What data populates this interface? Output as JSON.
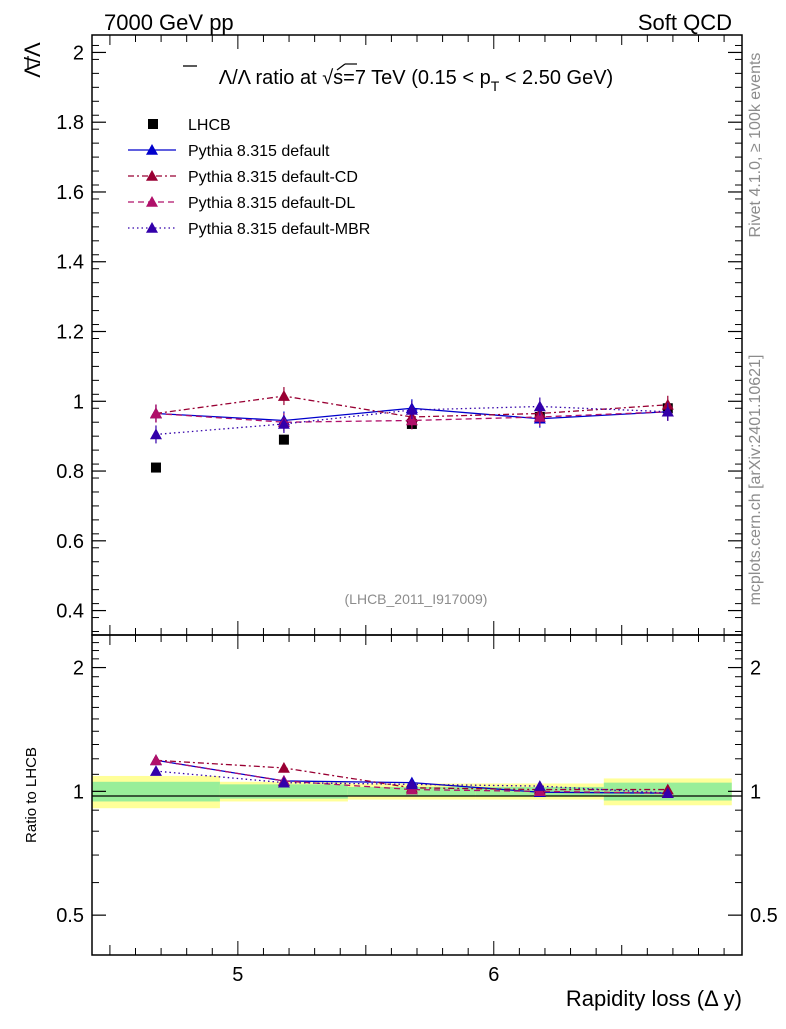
{
  "header": {
    "left": "7000 GeV pp",
    "right": "Soft QCD"
  },
  "side_labels": {
    "rivet": "Rivet 4.1.0, ≥ 100k events",
    "mcplots": "mcplots.cern.ch [arXiv:2401.10621]"
  },
  "colors": {
    "data": "#000000",
    "default": "#0000cc",
    "cd": "#990033",
    "dl": "#b0106a",
    "mbr": "#3300aa",
    "band_inner": "#99ee99",
    "band_outer": "#ffff99",
    "watermark": "#8c8c8c"
  },
  "chart_data": [
    {
      "type": "scatter",
      "title_main": "Λ/Λ ratio at √s=7 TeV (0.15 < p",
      "title_sub": "T",
      "title_tail": " < 2.50 GeV)",
      "ylabel": "Λ/Λ",
      "watermark": "(LHCB_2011_I917009)",
      "xlim": [
        4.43,
        6.97
      ],
      "ylim": [
        0.33,
        2.05
      ],
      "yticks": [
        0.4,
        0.6,
        0.8,
        1.0,
        1.2,
        1.4,
        1.6,
        1.8,
        2.0
      ],
      "ytick_labels": [
        "0.4",
        "0.6",
        "0.8",
        "1",
        "1.2",
        "1.4",
        "1.6",
        "1.8",
        "2"
      ],
      "x": [
        4.68,
        5.18,
        5.68,
        6.18,
        6.68
      ],
      "series": [
        {
          "name": "LHCB",
          "key": "data",
          "values": [
            0.81,
            0.89,
            0.935,
            0.955,
            0.98
          ],
          "style": "square"
        },
        {
          "name": "Pythia 8.315 default",
          "key": "default",
          "values": [
            0.965,
            0.945,
            0.98,
            0.95,
            0.97
          ],
          "style": "solid"
        },
        {
          "name": "Pythia 8.315 default-CD",
          "key": "cd",
          "values": [
            0.965,
            1.015,
            0.955,
            0.965,
            0.99
          ],
          "style": "dashdot"
        },
        {
          "name": "Pythia 8.315 default-DL",
          "key": "dl",
          "values": [
            0.965,
            0.94,
            0.945,
            0.955,
            0.97
          ],
          "style": "dashed"
        },
        {
          "name": "Pythia 8.315 default-MBR",
          "key": "mbr",
          "values": [
            0.905,
            0.935,
            0.975,
            0.985,
            0.97
          ],
          "style": "dotted"
        }
      ]
    },
    {
      "type": "line",
      "ylabel": "Ratio to LHCB",
      "xlabel": "Rapidity loss (Δ y)",
      "yscale": "log",
      "ylim": [
        0.4,
        2.4
      ],
      "yticks": [
        0.5,
        1,
        2
      ],
      "ytick_labels": [
        "0.5",
        "1",
        "2"
      ],
      "xticks": [
        5,
        6
      ],
      "xtick_labels": [
        "5",
        "6"
      ],
      "x": [
        4.68,
        5.18,
        5.68,
        6.18,
        6.68
      ],
      "bins": [
        [
          4.43,
          4.93
        ],
        [
          4.93,
          5.43
        ],
        [
          5.43,
          5.93
        ],
        [
          5.93,
          6.43
        ],
        [
          6.43,
          6.93
        ]
      ],
      "band_inner": [
        0.055,
        0.04,
        0.025,
        0.025,
        0.05
      ],
      "band_outer": [
        0.09,
        0.055,
        0.045,
        0.045,
        0.075
      ],
      "series": [
        {
          "name": "Pythia 8.315 default",
          "key": "default",
          "values": [
            1.19,
            1.06,
            1.05,
            0.995,
            0.99
          ],
          "style": "solid"
        },
        {
          "name": "Pythia 8.315 default-CD",
          "key": "cd",
          "values": [
            1.19,
            1.14,
            1.02,
            1.01,
            1.01
          ],
          "style": "dashdot"
        },
        {
          "name": "Pythia 8.315 default-DL",
          "key": "dl",
          "values": [
            1.19,
            1.06,
            1.01,
            1.0,
            0.99
          ],
          "style": "dashed"
        },
        {
          "name": "Pythia 8.315 default-MBR",
          "key": "mbr",
          "values": [
            1.12,
            1.05,
            1.04,
            1.03,
            0.99
          ],
          "style": "dotted"
        }
      ]
    }
  ]
}
